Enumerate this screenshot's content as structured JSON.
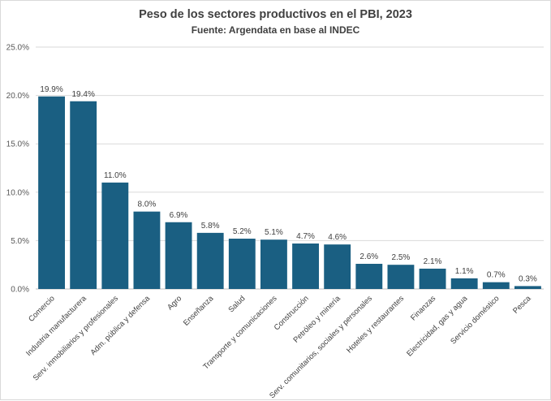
{
  "chart_data": {
    "type": "bar",
    "title": "Peso de los sectores productivos en el PBI, 2023",
    "subtitle": "Fuente: Argendata en base al INDEC",
    "xlabel": "",
    "ylabel": "",
    "ylim": [
      0,
      25
    ],
    "yticks": [
      "0.0%",
      "5.0%",
      "10.0%",
      "15.0%",
      "20.0%",
      "25.0%"
    ],
    "ytick_values": [
      0,
      5,
      10,
      15,
      20,
      25
    ],
    "grid": true,
    "bar_color": "#1a5f82",
    "categories": [
      "Comercio",
      "Industria manufacturera",
      "Serv. inmobiliarios y profesionales",
      "Adm. pública y defensa",
      "Agro",
      "Enseñanza",
      "Salud",
      "Transporte y comunicaciones",
      "Construcción",
      "Petróleo y minería",
      "Serv. comunitarios, sociales y personales",
      "Hoteles y restaurantes",
      "Finanzas",
      "Electricidad, gas y agua",
      "Servicio doméstico",
      "Pesca"
    ],
    "values": [
      19.9,
      19.4,
      11.0,
      8.0,
      6.9,
      5.8,
      5.2,
      5.1,
      4.7,
      4.6,
      2.6,
      2.5,
      2.1,
      1.1,
      0.7,
      0.3
    ],
    "data_labels": [
      "19.9%",
      "19.4%",
      "11.0%",
      "8.0%",
      "6.9%",
      "5.8%",
      "5.2%",
      "5.1%",
      "4.7%",
      "4.6%",
      "2.6%",
      "2.5%",
      "2.1%",
      "1.1%",
      "0.7%",
      "0.3%"
    ]
  }
}
